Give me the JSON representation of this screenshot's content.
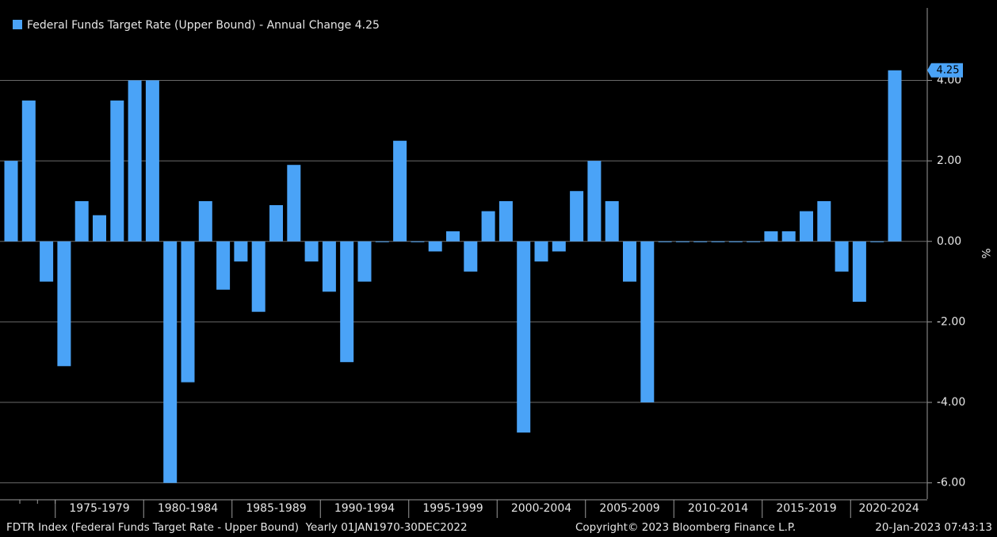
{
  "chart_data": {
    "type": "bar",
    "series": [
      {
        "name": "Federal Funds Target Rate (Upper Bound) - Annual Change 4.25",
        "color": "#4aa3f7",
        "values": [
          2.0,
          3.5,
          -1.0,
          -3.1,
          1.0,
          0.65,
          3.5,
          4.0,
          4.0,
          -6.0,
          -3.5,
          1.0,
          -1.2,
          -0.5,
          -1.75,
          0.9,
          1.9,
          -0.5,
          -1.25,
          -3.0,
          -1.0,
          0,
          2.5,
          0,
          -0.25,
          0.25,
          -0.75,
          0.75,
          1.0,
          -4.75,
          -0.5,
          -0.25,
          1.25,
          2.0,
          1.0,
          -1.0,
          -4.0,
          0,
          0,
          0,
          0,
          0,
          0,
          0.25,
          0.25,
          0.75,
          1.0,
          -0.75,
          -1.5,
          0,
          4.25
        ]
      }
    ],
    "categories": [
      null,
      null,
      null,
      null,
      null,
      null,
      null,
      null,
      null,
      null,
      null,
      null,
      null,
      null,
      null,
      null,
      null,
      null,
      null,
      null,
      null,
      null,
      null,
      null,
      null,
      null,
      null,
      null,
      null,
      null,
      null,
      null,
      null,
      null,
      null,
      null,
      null,
      null,
      null,
      null,
      null,
      null,
      null,
      null,
      null,
      null,
      null,
      null,
      null,
      null,
      null
    ],
    "x_groups": [
      "1975-1979",
      "1980-1984",
      "1985-1989",
      "1990-1994",
      "1995-1999",
      "2000-2004",
      "2005-2009",
      "2010-2014",
      "2015-2019",
      "2020-2024"
    ],
    "y_axis_label": "%",
    "ylim": [
      -6.4,
      5.8
    ],
    "yticks": [
      {
        "value": -6,
        "label": "-6.00"
      },
      {
        "value": -4,
        "label": "-4.00"
      },
      {
        "value": -2,
        "label": "-2.00"
      },
      {
        "value": 0,
        "label": "0.00"
      },
      {
        "value": 2,
        "label": "2.00"
      },
      {
        "value": 4,
        "label": "4.00"
      }
    ],
    "grid": true,
    "legend": "top-left",
    "footer": {
      "source": "FDTR Index (Federal Funds Target Rate - Upper Bound)  Yearly 01JAN1970-30DEC2022",
      "copyright": "Copyright© 2023 Bloomberg Finance L.P.",
      "timestamp": "20-Jan-2023 07:43:13"
    }
  }
}
